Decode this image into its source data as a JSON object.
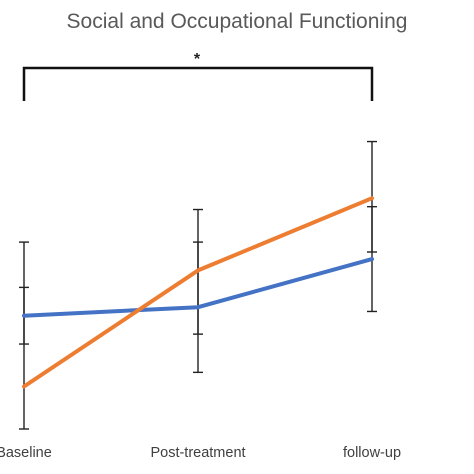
{
  "chart_data": {
    "type": "line",
    "title": "Social and Occupational Functioning",
    "categories": [
      "Baseline",
      "Post-treatment",
      "follow-up"
    ],
    "series": [
      {
        "color": "#4472C4",
        "values": [
          8.0,
          8.6,
          12.0
        ],
        "error_low": [
          6.0,
          4.0,
          8.3
        ],
        "error_high": [
          10.0,
          13.2,
          15.7
        ]
      },
      {
        "color": "#ED7D31",
        "values": [
          3.0,
          11.2,
          16.3
        ],
        "error_low": [
          0.0,
          6.7,
          12.5
        ],
        "error_high": [
          13.2,
          15.5,
          20.3
        ]
      }
    ],
    "ylim": [
      0,
      25
    ],
    "grid": false,
    "legend": "none",
    "significance": {
      "from": "Baseline",
      "to": "follow-up",
      "label": "*"
    }
  }
}
